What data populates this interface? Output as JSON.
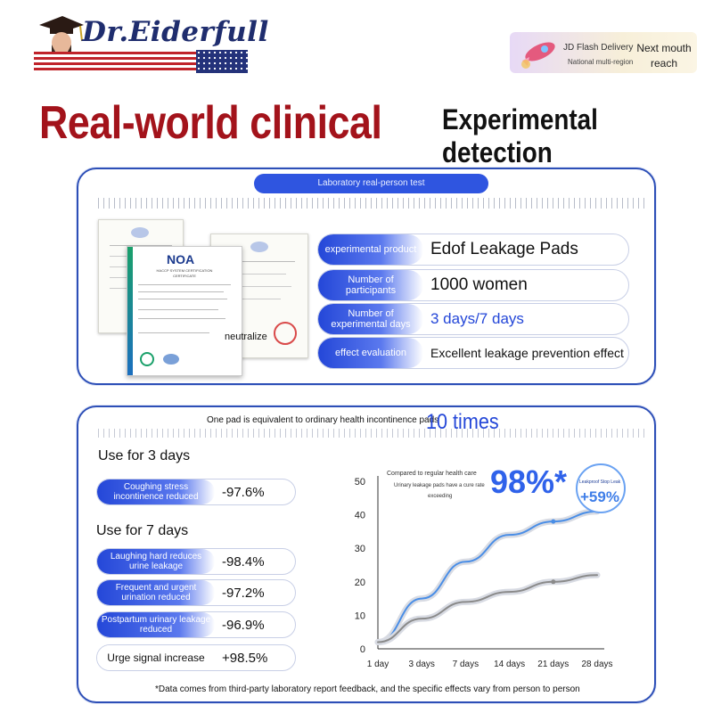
{
  "brand": {
    "name": "Dr.Eiderfull"
  },
  "shipping": {
    "line1": "JD Flash Delivery",
    "line2": "National multi-region",
    "line3": "Next mouth reach"
  },
  "headings": {
    "main": "Real-world clinical",
    "right": "Experimental detection"
  },
  "lab": {
    "header": "Laboratory real-person test",
    "certificate": {
      "logo": "NOA",
      "title": "HACCP SYSTEM CERTIFICATION",
      "subtitle": "CERTIFICATE",
      "overlay_text": "neutralize"
    },
    "rows": [
      {
        "label": "experimental product",
        "value": "Edof Leakage Pads"
      },
      {
        "label": "Number of participants",
        "value": "1000 women"
      },
      {
        "label": "Number of experimental days",
        "value": "3 days/7 days"
      },
      {
        "label": "effect evaluation",
        "value": "Excellent leakage prevention effect"
      }
    ]
  },
  "results": {
    "note": "One pad is equivalent to ordinary health incontinence pads",
    "note_big": "10 times",
    "three_days": {
      "title": "Use for 3 days",
      "items": [
        {
          "label": "Coughing stress incontinence reduced",
          "value": "-97.6%"
        }
      ]
    },
    "seven_days": {
      "title": "Use for 7 days",
      "items": [
        {
          "label": "Laughing hard reduces urine leakage",
          "value": "-98.4%"
        },
        {
          "label": "Frequent and urgent urination reduced",
          "value": "-97.2%"
        },
        {
          "label": "Postpartum urinary leakage reduced",
          "value": "-96.9%"
        },
        {
          "label": "Urge signal increase",
          "value": "+98.5%"
        }
      ]
    },
    "footnote": "*Data comes from third-party laboratory report feedback, and the specific effects vary from person to person"
  },
  "chart_data": {
    "type": "line",
    "title": "",
    "annotations": [
      "Compared to regular health care",
      "Urinary leakage pads have a cure rate",
      "exceeding",
      "98%*",
      "Leakproof Stop Leak",
      "+59%"
    ],
    "x": [
      "1 day",
      "3 days",
      "7 days",
      "14 days",
      "21 days",
      "28 days"
    ],
    "ylim": [
      0,
      50
    ],
    "yticks": [
      0,
      10,
      20,
      30,
      40,
      50
    ],
    "series": [
      {
        "values": [
          2,
          15,
          26,
          34,
          38,
          41
        ],
        "color": "#4a8ee6"
      },
      {
        "values": [
          2,
          9,
          14,
          17,
          20,
          22
        ],
        "color": "#8a8a8a"
      }
    ],
    "grid": false
  },
  "colors": {
    "accent": "#2447d8",
    "heading_red": "#a3131b",
    "panel_border": "#2d4fb7"
  }
}
